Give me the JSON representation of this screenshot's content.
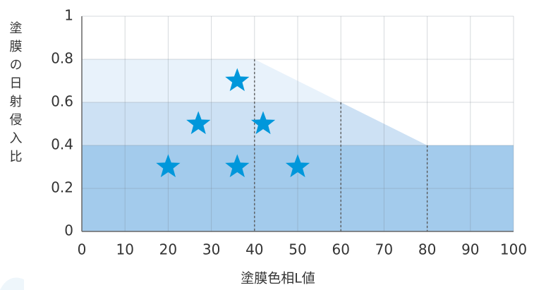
{
  "chart_data": {
    "type": "scatter",
    "x_label": "塗膜色相L値",
    "y_label": "塗膜の日射侵入比",
    "xlim": [
      0,
      100
    ],
    "xticks": [
      0,
      10,
      20,
      30,
      40,
      50,
      60,
      70,
      80,
      90,
      100
    ],
    "ylim": [
      0,
      1
    ],
    "yticks": [
      0,
      0.2,
      0.4,
      0.6,
      0.8,
      1
    ],
    "grid": true,
    "regions": [
      {
        "color": "#e8f2fb",
        "x": [
          0,
          0,
          40,
          80,
          100,
          100
        ],
        "y": [
          0,
          0.8,
          0.8,
          0.4,
          0.4,
          0
        ]
      },
      {
        "color": "#cde1f4",
        "x": [
          0,
          0,
          60,
          80,
          100,
          100
        ],
        "y": [
          0,
          0.6,
          0.6,
          0.4,
          0.4,
          0
        ]
      },
      {
        "color": "#a3cbec",
        "x": [
          0,
          0,
          100,
          100
        ],
        "y": [
          0,
          0.4,
          0.4,
          0
        ]
      }
    ],
    "dashed_lines": {
      "x": [
        40,
        60,
        80
      ],
      "y": [
        0.8,
        0.6,
        0.4
      ]
    },
    "series": [
      {
        "color": "#0097db",
        "x": [
          20,
          27,
          36,
          36,
          42,
          50
        ],
        "values": [
          0.3,
          0.5,
          0.7,
          0.3,
          0.5,
          0.3
        ]
      }
    ]
  }
}
